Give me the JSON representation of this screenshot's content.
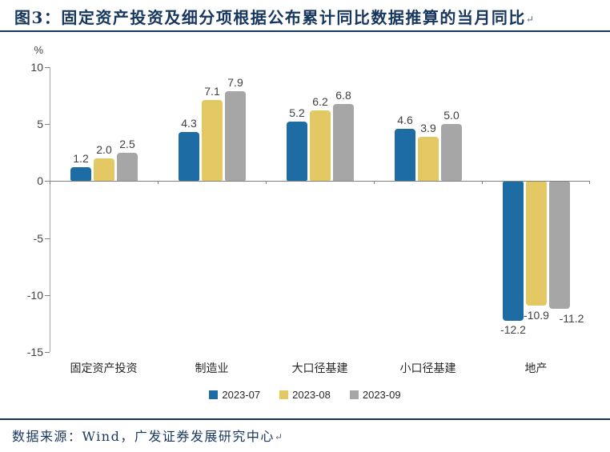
{
  "header": {
    "title": "图3：固定资产投资及细分项根据公布累计同比数据推算的当月同比",
    "para_mark": "↵"
  },
  "footer": {
    "source": "数据来源：Wind，广发证券发展研究中心",
    "para_mark": "↵"
  },
  "chart_data": {
    "type": "bar",
    "title": "固定资产投资及细分项根据公布累计同比数据推算的当月同比",
    "xlabel": "",
    "ylabel": "%",
    "ylim": [
      -15,
      10
    ],
    "ytick_values": [
      10,
      5,
      0,
      -5,
      -10,
      -15
    ],
    "ytick_labels": [
      "10",
      "5",
      "0",
      "-5",
      "-10",
      "-15"
    ],
    "grid": false,
    "legend_position": "bottom",
    "categories": [
      "固定资产投资",
      "制造业",
      "大口径基建",
      "小口径基建",
      "地产"
    ],
    "series": [
      {
        "name": "2023-07",
        "color": "#1E6CA4",
        "values": [
          1.2,
          4.3,
          5.2,
          4.6,
          -12.2
        ],
        "labels": [
          "1.2",
          "4.3",
          "5.2",
          "4.6",
          "-12.2"
        ]
      },
      {
        "name": "2023-08",
        "color": "#E4C863",
        "values": [
          2.0,
          7.1,
          6.2,
          3.9,
          -10.9
        ],
        "labels": [
          "2.0",
          "7.1",
          "6.2",
          "3.9",
          "-10.9"
        ]
      },
      {
        "name": "2023-09",
        "color": "#A6A6A6",
        "values": [
          2.5,
          7.9,
          6.8,
          5.0,
          -11.2
        ],
        "labels": [
          "2.5",
          "7.9",
          "6.8",
          "5.0",
          "-11.2"
        ]
      }
    ]
  },
  "colors": {
    "navy": "#17365D",
    "axis_line": "#A6A6A6",
    "baseline": "#7F7F7F",
    "value_text": "#3F3F3F",
    "category_text": "#262626"
  }
}
